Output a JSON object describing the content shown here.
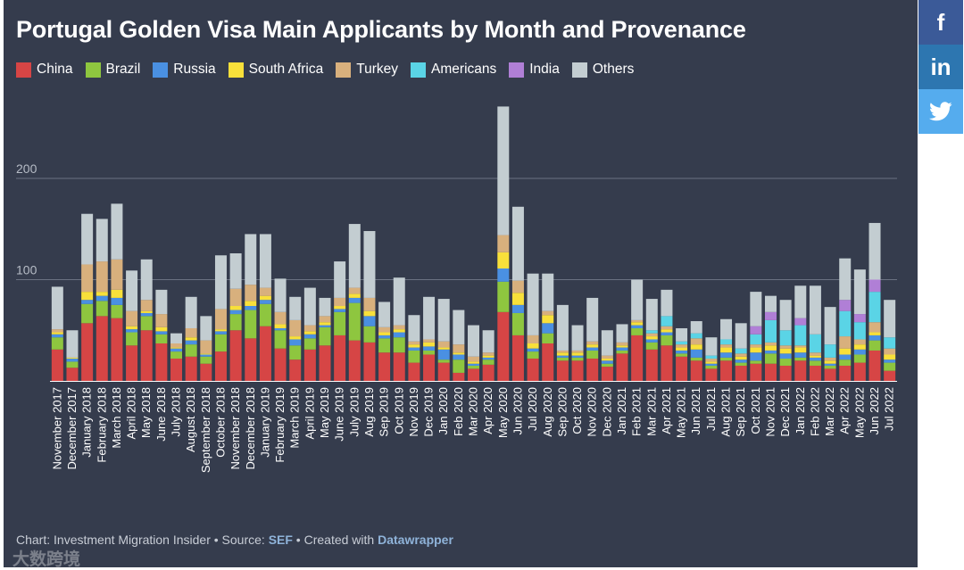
{
  "title": "Portugal Golden Visa Main Applicants by Month and Provenance",
  "footer": {
    "prefix": "Chart: Investment Migration Insider • Source: ",
    "source": "SEF",
    "middle": " • Created with ",
    "tool": "Datawrapper"
  },
  "watermark": "大数跨境",
  "social": {
    "facebook": "f",
    "linkedin": "in",
    "twitter": "twitter-bird"
  },
  "colors": {
    "China": "#d64545",
    "Brazil": "#8ec63f",
    "Russia": "#4a90e2",
    "South Africa": "#f8e03a",
    "Turkey": "#d8b07d",
    "Americans": "#5ad4e6",
    "India": "#b07fd6",
    "Others": "#c3cdd1"
  },
  "chart_data": {
    "type": "bar",
    "stacked": true,
    "title": "Portugal Golden Visa Main Applicants by Month and Provenance",
    "ylim": [
      0,
      275
    ],
    "yticks": [
      100,
      200
    ],
    "grid": true,
    "legend": "top-left",
    "categories": [
      "November 2017",
      "December 2017",
      "January 2018",
      "February 2018",
      "March 2018",
      "April 2018",
      "May 2018",
      "June 2018",
      "July 2018",
      "August 2018",
      "September 2018",
      "October 2018",
      "November 2018",
      "December 2018",
      "January 2019",
      "February 2019",
      "March 2019",
      "April 2019",
      "May 2019",
      "June 2019",
      "July 2019",
      "Aug 2019",
      "Sep 2019",
      "Oct 2019",
      "Nov 2019",
      "Dec 2019",
      "Jan 2020",
      "Feb 2020",
      "Mar 2020",
      "Apr 2020",
      "May 2020",
      "Jun 2020",
      "Jul 2020",
      "Aug 2020",
      "Sep 2020",
      "Oct 2020",
      "Nov 2020",
      "Dec 2020",
      "Jan 2021",
      "Feb 2021",
      "Mar 2021",
      "Apr 2021",
      "May 2021",
      "Jun 2021",
      "Jul 2021",
      "Aug 2021",
      "Sep 2021",
      "Oct 2021",
      "Nov 2021",
      "Dec 2021",
      "Jan 2022",
      "Feb 2022",
      "Mar 2022",
      "Apr 2022",
      "May 2022",
      "Jun 2022",
      "Jul 2022"
    ],
    "series": [
      {
        "name": "China",
        "values": [
          31,
          13,
          57,
          64,
          62,
          35,
          50,
          37,
          22,
          24,
          17,
          29,
          50,
          42,
          54,
          32,
          21,
          31,
          35,
          45,
          40,
          38,
          28,
          28,
          18,
          26,
          18,
          8,
          12,
          16,
          68,
          45,
          22,
          37,
          20,
          20,
          22,
          14,
          27,
          45,
          31,
          35,
          24,
          20,
          12,
          20,
          15,
          17,
          17,
          15,
          20,
          15,
          12,
          15,
          18,
          30,
          10
        ]
      },
      {
        "name": "Brazil",
        "values": [
          12,
          6,
          19,
          15,
          13,
          13,
          14,
          9,
          7,
          12,
          7,
          17,
          16,
          28,
          22,
          18,
          14,
          11,
          18,
          23,
          37,
          16,
          14,
          15,
          12,
          4,
          3,
          13,
          3,
          5,
          30,
          22,
          7,
          10,
          3,
          3,
          8,
          3,
          3,
          7,
          7,
          10,
          3,
          3,
          3,
          3,
          3,
          3,
          10,
          7,
          3,
          5,
          3,
          6,
          8,
          10,
          8
        ]
      },
      {
        "name": "Russia",
        "values": [
          3,
          3,
          4,
          5,
          7,
          3,
          3,
          3,
          3,
          4,
          2,
          3,
          4,
          4,
          4,
          2,
          6,
          4,
          2,
          3,
          5,
          10,
          3,
          5,
          3,
          4,
          10,
          5,
          2,
          2,
          13,
          8,
          3,
          10,
          2,
          2,
          3,
          3,
          3,
          3,
          3,
          3,
          3,
          8,
          2,
          5,
          3,
          8,
          3,
          5,
          5,
          3,
          2,
          5,
          5,
          5,
          3
        ]
      },
      {
        "name": "South Africa",
        "values": [
          2,
          1,
          8,
          4,
          8,
          3,
          2,
          4,
          1,
          3,
          1,
          2,
          4,
          5,
          4,
          4,
          3,
          3,
          3,
          3,
          4,
          5,
          3,
          3,
          3,
          4,
          2,
          2,
          2,
          2,
          16,
          12,
          5,
          8,
          3,
          3,
          3,
          2,
          2,
          3,
          3,
          3,
          3,
          5,
          2,
          5,
          3,
          5,
          5,
          5,
          5,
          2,
          3,
          6,
          5,
          3,
          5
        ]
      },
      {
        "name": "Turkey",
        "values": [
          3,
          0,
          27,
          30,
          30,
          15,
          11,
          13,
          4,
          9,
          13,
          20,
          17,
          16,
          8,
          12,
          16,
          6,
          6,
          8,
          6,
          13,
          5,
          4,
          3,
          3,
          6,
          8,
          5,
          3,
          17,
          12,
          8,
          4,
          2,
          2,
          3,
          3,
          3,
          2,
          3,
          3,
          3,
          6,
          3,
          3,
          3,
          3,
          3,
          3,
          2,
          3,
          3,
          12,
          5,
          10,
          6
        ]
      },
      {
        "name": "Americans",
        "values": [
          0,
          0,
          0,
          0,
          0,
          0,
          0,
          0,
          0,
          0,
          0,
          0,
          0,
          0,
          0,
          0,
          0,
          0,
          0,
          0,
          0,
          0,
          0,
          0,
          0,
          0,
          0,
          0,
          0,
          0,
          0,
          0,
          0,
          0,
          0,
          0,
          0,
          0,
          0,
          0,
          3,
          10,
          3,
          5,
          3,
          5,
          5,
          10,
          22,
          15,
          20,
          18,
          13,
          25,
          17,
          30,
          11
        ]
      },
      {
        "name": "India",
        "values": [
          0,
          0,
          0,
          0,
          0,
          0,
          0,
          0,
          0,
          0,
          0,
          0,
          0,
          0,
          0,
          0,
          0,
          0,
          0,
          0,
          0,
          0,
          0,
          0,
          0,
          0,
          0,
          0,
          0,
          0,
          0,
          0,
          0,
          0,
          0,
          0,
          0,
          0,
          0,
          0,
          0,
          0,
          0,
          0,
          0,
          0,
          0,
          8,
          8,
          0,
          7,
          0,
          0,
          11,
          8,
          12,
          0
        ]
      },
      {
        "name": "Others",
        "values": [
          42,
          27,
          50,
          42,
          55,
          40,
          40,
          24,
          10,
          31,
          24,
          53,
          35,
          50,
          53,
          33,
          23,
          37,
          18,
          36,
          63,
          66,
          25,
          47,
          26,
          42,
          42,
          34,
          31,
          22,
          127,
          73,
          61,
          37,
          45,
          25,
          43,
          25,
          18,
          40,
          31,
          26,
          13,
          12,
          18,
          20,
          25,
          34,
          16,
          30,
          32,
          48,
          37,
          41,
          44,
          56,
          37
        ]
      }
    ]
  }
}
